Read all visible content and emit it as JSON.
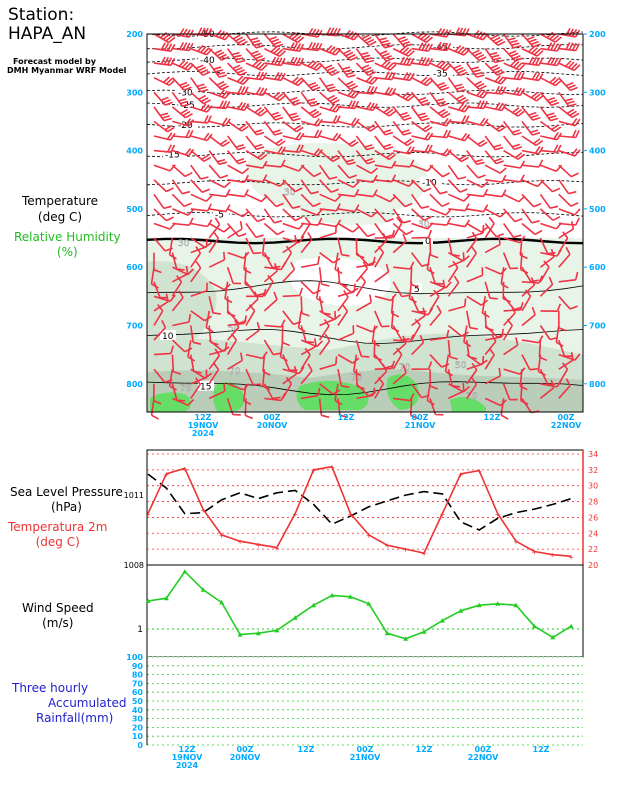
{
  "station": {
    "label": "Station:",
    "name": "HAPA_AN"
  },
  "forecast_model": {
    "line1": "Forecast model by",
    "line2": "DMH Myanmar WRF Model"
  },
  "colors": {
    "wind": "#ee3344",
    "humidity_light": "#e8f4e8",
    "humidity_mid": "#d0e2d0",
    "humidity_dark": "#b9cdb9",
    "humidity_green": "#66dd66",
    "rainfall_grid": "#33cc33",
    "axis_labels": "#00aaff",
    "temp2m": "#ee3333",
    "wind_speed": "#22cc22",
    "slp": "#000000"
  },
  "left_labels": {
    "temperature": "Temperature",
    "temperature_unit": "(deg C)",
    "humidity": "Relative Humidity",
    "humidity_unit": "(%)",
    "slp": "Sea Level Pressure",
    "slp_unit": "(hPa)",
    "t2m": "Temperatura 2m",
    "t2m_unit": "(deg C)",
    "wind": "Wind Speed",
    "wind_unit": "(m/s)",
    "rain1": "Three hourly",
    "rain2": "Accumulated",
    "rain3": "Rainfall(mm)"
  },
  "chart_data": [
    {
      "type": "line",
      "name": "upper-air cross-section",
      "title": "",
      "y_axis": {
        "label": "",
        "ticks": [
          "200",
          "300",
          "400",
          "500",
          "600",
          "700",
          "800"
        ]
      },
      "x_ticks": [
        {
          "time": "12Z",
          "date": "19NOV",
          "year": "2024"
        },
        {
          "time": "00Z",
          "date": "20NOV",
          "year": ""
        },
        {
          "time": "12Z",
          "date": "",
          "year": ""
        },
        {
          "time": "00Z",
          "date": "21NOV",
          "year": ""
        },
        {
          "time": "12Z",
          "date": "",
          "year": ""
        },
        {
          "time": "00Z",
          "date": "22NOV",
          "year": ""
        }
      ],
      "temperature_isotherms": [
        {
          "value": "-50",
          "p": 200
        },
        {
          "value": "-45",
          "p": 222
        },
        {
          "value": "-40",
          "p": 245
        },
        {
          "value": "-35",
          "p": 268
        },
        {
          "value": "-30",
          "p": 300
        },
        {
          "value": "-25",
          "p": 322
        },
        {
          "value": "-20",
          "p": 356
        },
        {
          "value": "-15",
          "p": 407
        },
        {
          "value": "-10",
          "p": 455
        },
        {
          "value": "-5",
          "p": 510
        },
        {
          "value": "0",
          "p": 555
        },
        {
          "value": "5",
          "p": 637
        },
        {
          "value": "10",
          "p": 718
        },
        {
          "value": "15",
          "p": 805
        }
      ],
      "humidity_labels": [
        "30",
        "30",
        "30",
        "50",
        "50",
        "70",
        "70",
        "70",
        "70",
        "70"
      ]
    },
    {
      "type": "line",
      "name": "sea level pressure and 2m temperature",
      "left_axis": {
        "ticks": [
          "1011",
          "1008"
        ]
      },
      "right_axis": {
        "ticks": [
          "34",
          "32",
          "30",
          "28",
          "26",
          "24",
          "22",
          "20"
        ]
      },
      "series": [
        {
          "name": "Sea Level Pressure",
          "values": [
            1011.9,
            1011.3,
            1010.2,
            1010.25,
            1010.8,
            1011.1,
            1010.85,
            1011.1,
            1011.2,
            1010.6,
            1009.75,
            1010.1,
            1010.5,
            1010.75,
            1011.0,
            1011.15,
            1011.05,
            1009.85,
            1009.5,
            1010.0,
            1010.25,
            1010.4,
            1010.6,
            1010.85
          ]
        },
        {
          "name": "Temperatura 2m",
          "values": [
            26.5,
            31.5,
            32.2,
            27.0,
            23.8,
            23.0,
            22.6,
            22.2,
            26.5,
            32.0,
            32.4,
            26.5,
            23.8,
            22.5,
            22.0,
            21.5,
            26.5,
            31.5,
            31.9,
            26.5,
            23.0,
            21.7,
            21.3,
            21.1
          ]
        }
      ]
    },
    {
      "type": "line",
      "name": "wind speed",
      "left_axis": {
        "ticks": [
          "1"
        ]
      },
      "series": [
        {
          "name": "Wind Speed",
          "values": [
            2.0,
            2.1,
            3.05,
            2.4,
            1.95,
            0.8,
            0.85,
            0.95,
            1.4,
            1.85,
            2.2,
            2.15,
            1.9,
            0.85,
            0.65,
            0.9,
            1.3,
            1.65,
            1.85,
            1.9,
            1.85,
            1.1,
            0.7,
            1.1
          ]
        }
      ]
    },
    {
      "type": "bar",
      "name": "three hourly accumulated rainfall",
      "left_axis": {
        "ticks": [
          "100",
          "90",
          "80",
          "70",
          "60",
          "50",
          "40",
          "30",
          "20",
          "10",
          "0"
        ]
      },
      "values": [],
      "x_ticks": [
        {
          "time": "12Z",
          "date": "19NOV",
          "year": "2024"
        },
        {
          "time": "00Z",
          "date": "20NOV",
          "year": ""
        },
        {
          "time": "12Z",
          "date": "",
          "year": ""
        },
        {
          "time": "00Z",
          "date": "21NOV",
          "year": ""
        },
        {
          "time": "12Z",
          "date": "",
          "year": ""
        },
        {
          "time": "00Z",
          "date": "22NOV",
          "year": ""
        }
      ]
    }
  ]
}
